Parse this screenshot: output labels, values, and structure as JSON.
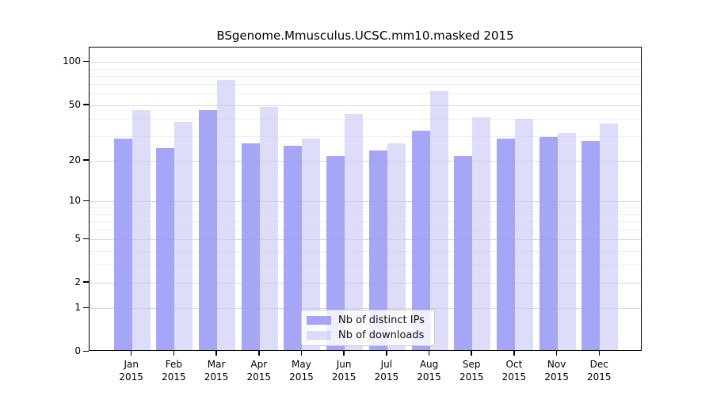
{
  "title": "BSgenome.Mmusculus.UCSC.mm10.masked 2015",
  "chart_data": {
    "type": "bar",
    "title": "BSgenome.Mmusculus.UCSC.mm10.masked 2015",
    "categories": [
      "Jan",
      "Feb",
      "Mar",
      "Apr",
      "May",
      "Jun",
      "Jul",
      "Aug",
      "Sep",
      "Oct",
      "Nov",
      "Dec"
    ],
    "category_year": "2015",
    "series": [
      {
        "name": "Nb of distinct IPs",
        "color": "rgba(150,150,245,0.85)",
        "values": [
          28,
          24,
          45,
          26,
          25,
          21,
          23,
          32,
          21,
          28,
          29,
          27
        ]
      },
      {
        "name": "Nb of downloads",
        "color": "rgba(200,200,246,0.62)",
        "values": [
          45,
          37,
          73,
          47,
          28,
          42,
          26,
          61,
          40,
          39,
          31,
          36
        ]
      }
    ],
    "xlabel": "",
    "ylabel": "",
    "y_axis": {
      "scale": "log1p",
      "major_ticks": [
        0,
        1,
        2,
        5,
        10,
        20,
        50,
        100
      ],
      "minor_ticks": [
        3,
        4,
        6,
        7,
        8,
        9,
        30,
        40,
        60,
        70,
        80,
        90
      ],
      "ylim": [
        0,
        125
      ]
    },
    "grid": {
      "shown": true,
      "major_color": "#d9d9d9",
      "minor_color": "#efefef"
    },
    "legend": {
      "position": "bottom-center"
    }
  }
}
